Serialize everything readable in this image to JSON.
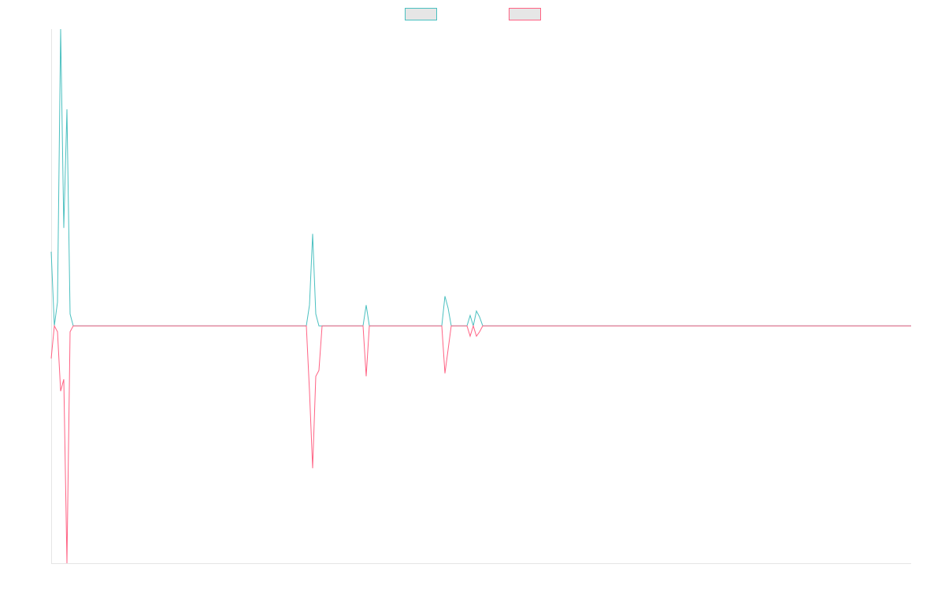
{
  "chart_data": {
    "type": "line",
    "x": [
      0,
      1,
      2,
      3,
      4,
      5,
      6,
      7,
      81,
      82,
      83,
      84,
      85,
      86,
      99,
      100,
      101,
      124,
      125,
      126,
      127,
      132,
      133,
      134,
      135,
      136,
      137,
      273
    ],
    "xlim": [
      0,
      273
    ],
    "ylim": [
      -80,
      100
    ],
    "legend": "top",
    "series": [
      {
        "color": "#4bc0c0",
        "values": [
          25,
          0,
          8,
          100,
          33,
          73,
          4,
          0,
          0,
          7,
          31,
          4,
          0,
          0,
          0,
          7,
          0,
          0,
          10,
          6,
          0,
          0,
          3.5,
          0,
          5,
          3,
          0,
          0
        ]
      },
      {
        "color": "#ff6384",
        "values": [
          -11,
          0,
          -2,
          -22,
          -18,
          -80,
          -2,
          0,
          0,
          -22,
          -48,
          -17,
          -15,
          0,
          0,
          -17,
          0,
          0,
          -16,
          -8,
          0,
          0,
          -3.5,
          0,
          -3.5,
          -2,
          0,
          0
        ]
      }
    ]
  }
}
